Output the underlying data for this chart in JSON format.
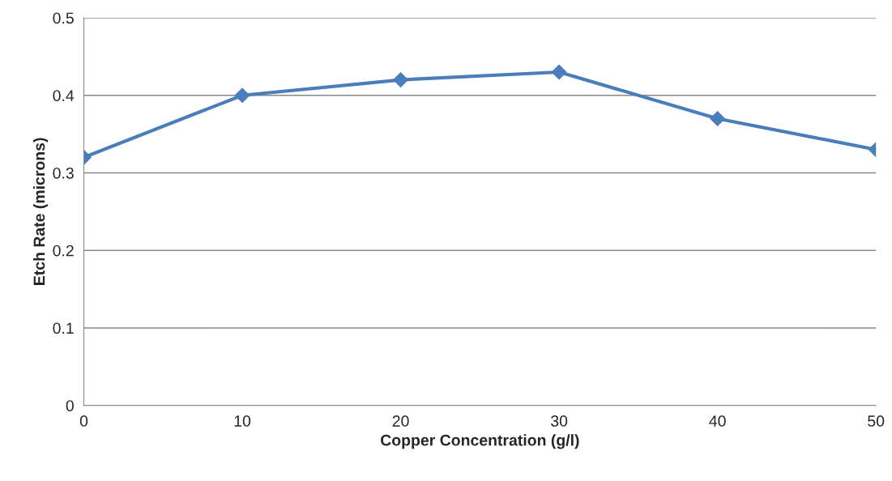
{
  "chart_data": {
    "type": "line",
    "xlabel": "Copper Concentration (g/l)",
    "ylabel": "Etch Rate (microns)",
    "x": [
      0,
      10,
      20,
      30,
      40,
      50
    ],
    "series": [
      {
        "color": "#4a7ebb",
        "values": [
          0.32,
          0.4,
          0.42,
          0.43,
          0.37,
          0.33
        ]
      }
    ],
    "xlim": [
      0,
      50
    ],
    "xticks": [
      0,
      10,
      20,
      30,
      40,
      50
    ],
    "ylim": [
      0,
      0.5
    ],
    "yticks": [
      0,
      0.1,
      0.2,
      0.3,
      0.4,
      0.5
    ],
    "grid": "y",
    "marker": "diamond",
    "line_style": "solid",
    "legend": false
  }
}
